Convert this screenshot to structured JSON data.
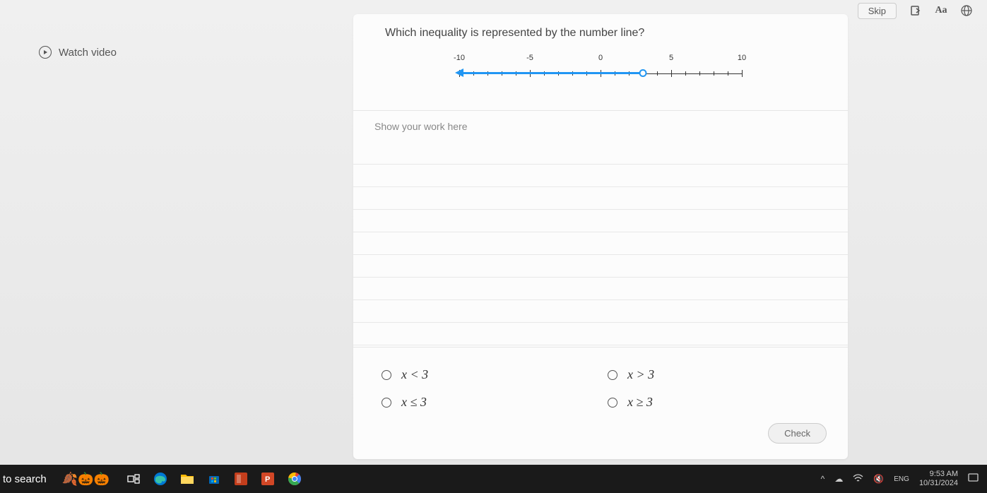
{
  "topbar": {
    "skip": "Skip",
    "icons": [
      "open-external",
      "font-aa",
      "globe-lang"
    ]
  },
  "left": {
    "watch_video": "Watch video"
  },
  "question": {
    "text": "Which inequality is represented by the number line?",
    "numberline": {
      "min": -10,
      "max": 10,
      "major_ticks": [
        -10,
        -5,
        0,
        5,
        10
      ],
      "labels": {
        "-10": "-10",
        "-5": "-5",
        "0": "0",
        "5": "5",
        "10": "10"
      },
      "ray_from": 3,
      "ray_direction": "left",
      "endpoint_open": true,
      "line_color": "#2196f3",
      "axis_color": "#333333"
    },
    "work_label": "Show your work here",
    "answers": [
      {
        "id": "a",
        "html": "x < 3"
      },
      {
        "id": "b",
        "html": "x > 3"
      },
      {
        "id": "c",
        "html": "x ≤ 3"
      },
      {
        "id": "d",
        "html": "x ≥ 3"
      }
    ],
    "check": "Check"
  },
  "taskbar": {
    "search": "to search",
    "time": "9:53 AM",
    "date": "10/31/2024"
  }
}
